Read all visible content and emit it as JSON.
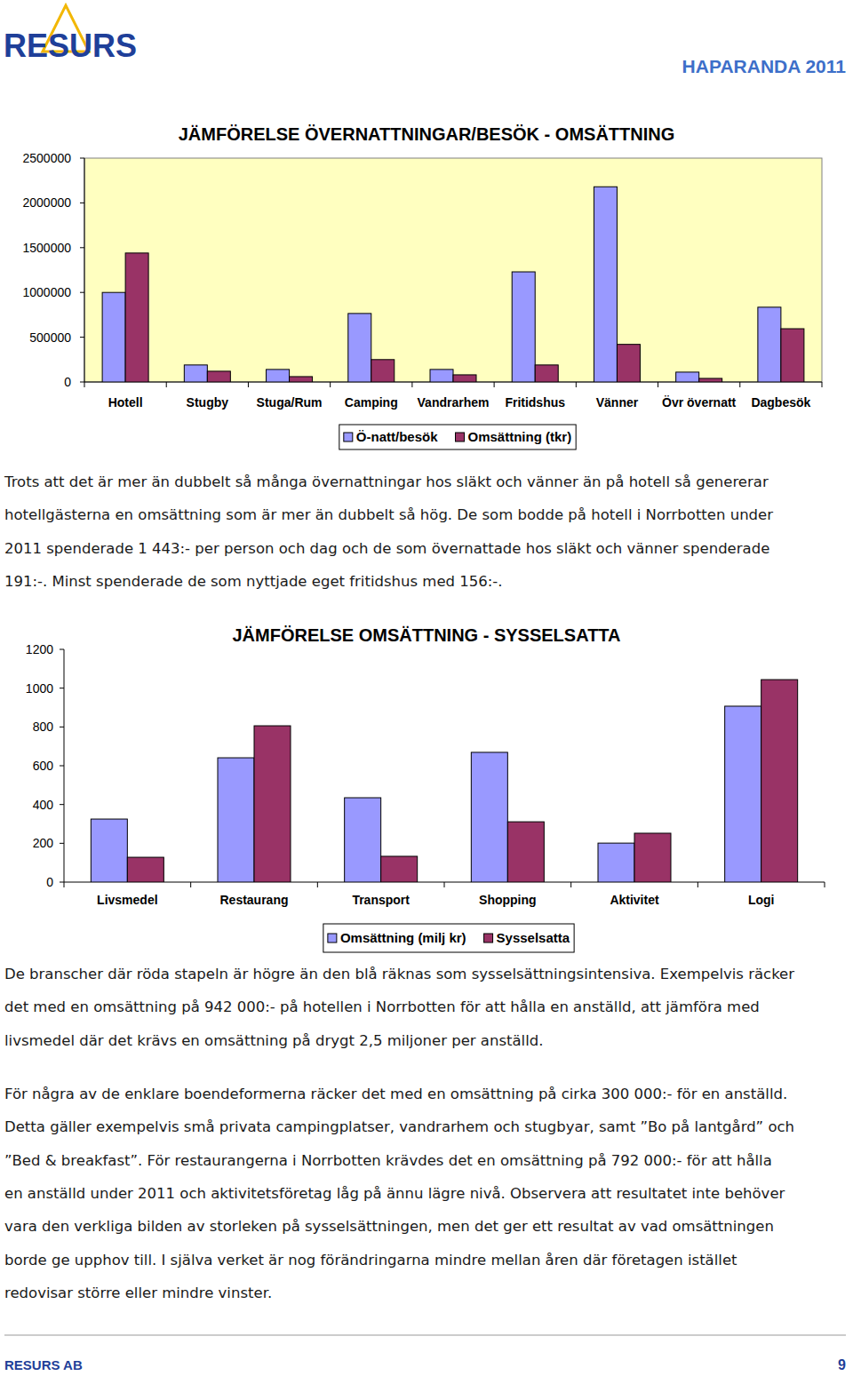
{
  "header": {
    "logo": "RESURS",
    "title": "HAPARANDA 2011"
  },
  "chart_data": [
    {
      "type": "bar",
      "title": "JÄMFÖRELSE ÖVERNATTNINGAR/BESÖK - OMSÄTTNING",
      "categories": [
        "Hotell",
        "Stugby",
        "Stuga/Rum",
        "Camping",
        "Vandrarhem",
        "Fritidshus",
        "Vänner",
        "Övr övernatt",
        "Dagbesök"
      ],
      "series": [
        {
          "name": "Ö-natt/besök",
          "color": "#9999ff",
          "values": [
            1000000,
            190000,
            140000,
            765000,
            140000,
            1230000,
            2180000,
            110000,
            835000
          ]
        },
        {
          "name": "Omsättning (tkr)",
          "color": "#993366",
          "values": [
            1440000,
            120000,
            60000,
            250000,
            80000,
            190000,
            420000,
            40000,
            595000
          ]
        }
      ],
      "ylim": [
        0,
        2500000
      ],
      "yticks": [
        0,
        500000,
        1000000,
        1500000,
        2000000,
        2500000
      ],
      "grid": false,
      "legend": "bottom"
    },
    {
      "type": "bar",
      "title": "JÄMFÖRELSE OMSÄTTNING - SYSSELSATTA",
      "categories": [
        "Livsmedel",
        "Restaurang",
        "Transport",
        "Shopping",
        "Aktivitet",
        "Logi"
      ],
      "series": [
        {
          "name": "Omsättning (milj kr)",
          "color": "#9999ff",
          "values": [
            325,
            641,
            435,
            669,
            201,
            907
          ]
        },
        {
          "name": "Sysselsatta",
          "color": "#993366",
          "values": [
            128,
            806,
            133,
            311,
            252,
            1044
          ]
        }
      ],
      "ylim": [
        0,
        1200
      ],
      "yticks": [
        0,
        200,
        400,
        600,
        800,
        1000,
        1200
      ],
      "grid": false,
      "legend": "bottom"
    }
  ],
  "paragraphs": [
    [
      "Trots att det är mer än dubbelt så många övernattningar hos släkt och vänner än på hotell så genererar",
      "hotellgästerna en omsättning som är mer än dubbelt så hög. De som bodde på hotell i Norrbotten under",
      "2011 spenderade 1 443:- per person och dag och de som övernattade hos släkt och vänner spenderade",
      "191:-. Minst spenderade de som nyttjade eget fritidshus med 156:-."
    ],
    [
      "De branscher där röda stapeln är högre än den blå räknas som sysselsättningsintensiva. Exempelvis räcker",
      "det med en omsättning på 942 000:- på hotellen i Norrbotten för att hålla en anställd, att jämföra med",
      "livsmedel där det krävs en omsättning på drygt 2,5 miljoner per anställd."
    ],
    [
      "För några av de enklare boendeformerna räcker det med en omsättning på cirka 300 000:- för en anställd.",
      "Detta gäller exempelvis små privata campingplatser, vandrarhem och stugbyar, samt ”Bo på lantgård” och",
      "”Bed & breakfast”. För restaurangerna i Norrbotten krävdes det en omsättning på 792 000:- för att hålla",
      "en anställd under 2011 och aktivitetsföretag låg på ännu lägre nivå. Observera att resultatet inte behöver",
      "vara den verkliga bilden av storleken på sysselsättningen, men det ger ett resultat av vad omsättningen",
      "borde ge upphov till. I själva verket är nog förändringarna mindre mellan åren där företagen istället",
      "redovisar större eller mindre vinster."
    ]
  ],
  "footer": {
    "company": "RESURS AB",
    "page": 9
  }
}
